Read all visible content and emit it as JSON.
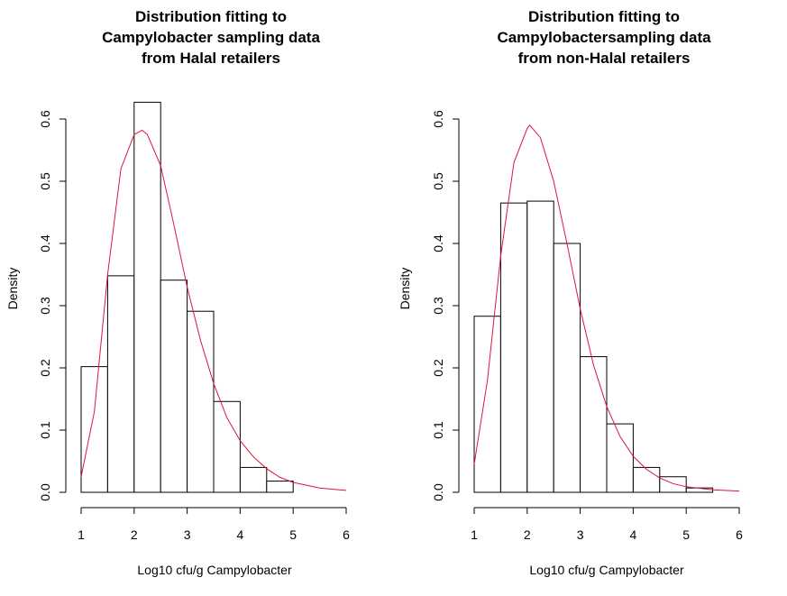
{
  "chart_data": [
    {
      "type": "bar",
      "title_lines": [
        "Distribution fitting to",
        "Campylobacter sampling data",
        "from Halal retailers"
      ],
      "xlabel": "Log10 cfu/g Campylobacter",
      "ylabel": "Density",
      "xlim": [
        1,
        6
      ],
      "ylim": [
        0,
        0.6
      ],
      "x_ticks": [
        1,
        2,
        3,
        4,
        5,
        6
      ],
      "y_ticks": [
        0.0,
        0.1,
        0.2,
        0.3,
        0.4,
        0.5,
        0.6
      ],
      "bin_edges": [
        1.0,
        1.5,
        2.0,
        2.5,
        3.0,
        3.5,
        4.0,
        4.5,
        5.0
      ],
      "densities": [
        0.202,
        0.348,
        0.627,
        0.341,
        0.291,
        0.146,
        0.04,
        0.018
      ],
      "fitted_curve": {
        "color": "#dc143c",
        "x": [
          1.0,
          1.25,
          1.5,
          1.75,
          2.0,
          2.15,
          2.25,
          2.5,
          2.75,
          3.0,
          3.25,
          3.5,
          3.75,
          4.0,
          4.25,
          4.5,
          4.75,
          5.0,
          5.5,
          6.0
        ],
        "y": [
          0.025,
          0.13,
          0.35,
          0.52,
          0.575,
          0.582,
          0.575,
          0.525,
          0.43,
          0.33,
          0.245,
          0.175,
          0.12,
          0.083,
          0.057,
          0.038,
          0.024,
          0.016,
          0.007,
          0.003
        ]
      }
    },
    {
      "type": "bar",
      "title_lines": [
        "Distribution fitting to",
        "Campylobactersampling data",
        "from non-Halal retailers"
      ],
      "xlabel": "Log10 cfu/g Campylobacter",
      "ylabel": "Density",
      "xlim": [
        1,
        6
      ],
      "ylim": [
        0,
        0.6
      ],
      "x_ticks": [
        1,
        2,
        3,
        4,
        5,
        6
      ],
      "y_ticks": [
        0.0,
        0.1,
        0.2,
        0.3,
        0.4,
        0.5,
        0.6
      ],
      "bin_edges": [
        1.0,
        1.5,
        2.0,
        2.5,
        3.0,
        3.5,
        4.0,
        4.5,
        5.0,
        5.5
      ],
      "densities": [
        0.283,
        0.465,
        0.468,
        0.4,
        0.218,
        0.11,
        0.04,
        0.025,
        0.007
      ],
      "fitted_curve": {
        "color": "#dc143c",
        "x": [
          1.0,
          1.25,
          1.5,
          1.75,
          2.0,
          2.05,
          2.25,
          2.5,
          2.75,
          3.0,
          3.25,
          3.5,
          3.75,
          4.0,
          4.25,
          4.5,
          4.75,
          5.0,
          5.5,
          6.0
        ],
        "y": [
          0.045,
          0.18,
          0.38,
          0.53,
          0.585,
          0.59,
          0.57,
          0.5,
          0.4,
          0.295,
          0.205,
          0.138,
          0.09,
          0.058,
          0.037,
          0.023,
          0.014,
          0.009,
          0.004,
          0.002
        ]
      }
    }
  ]
}
